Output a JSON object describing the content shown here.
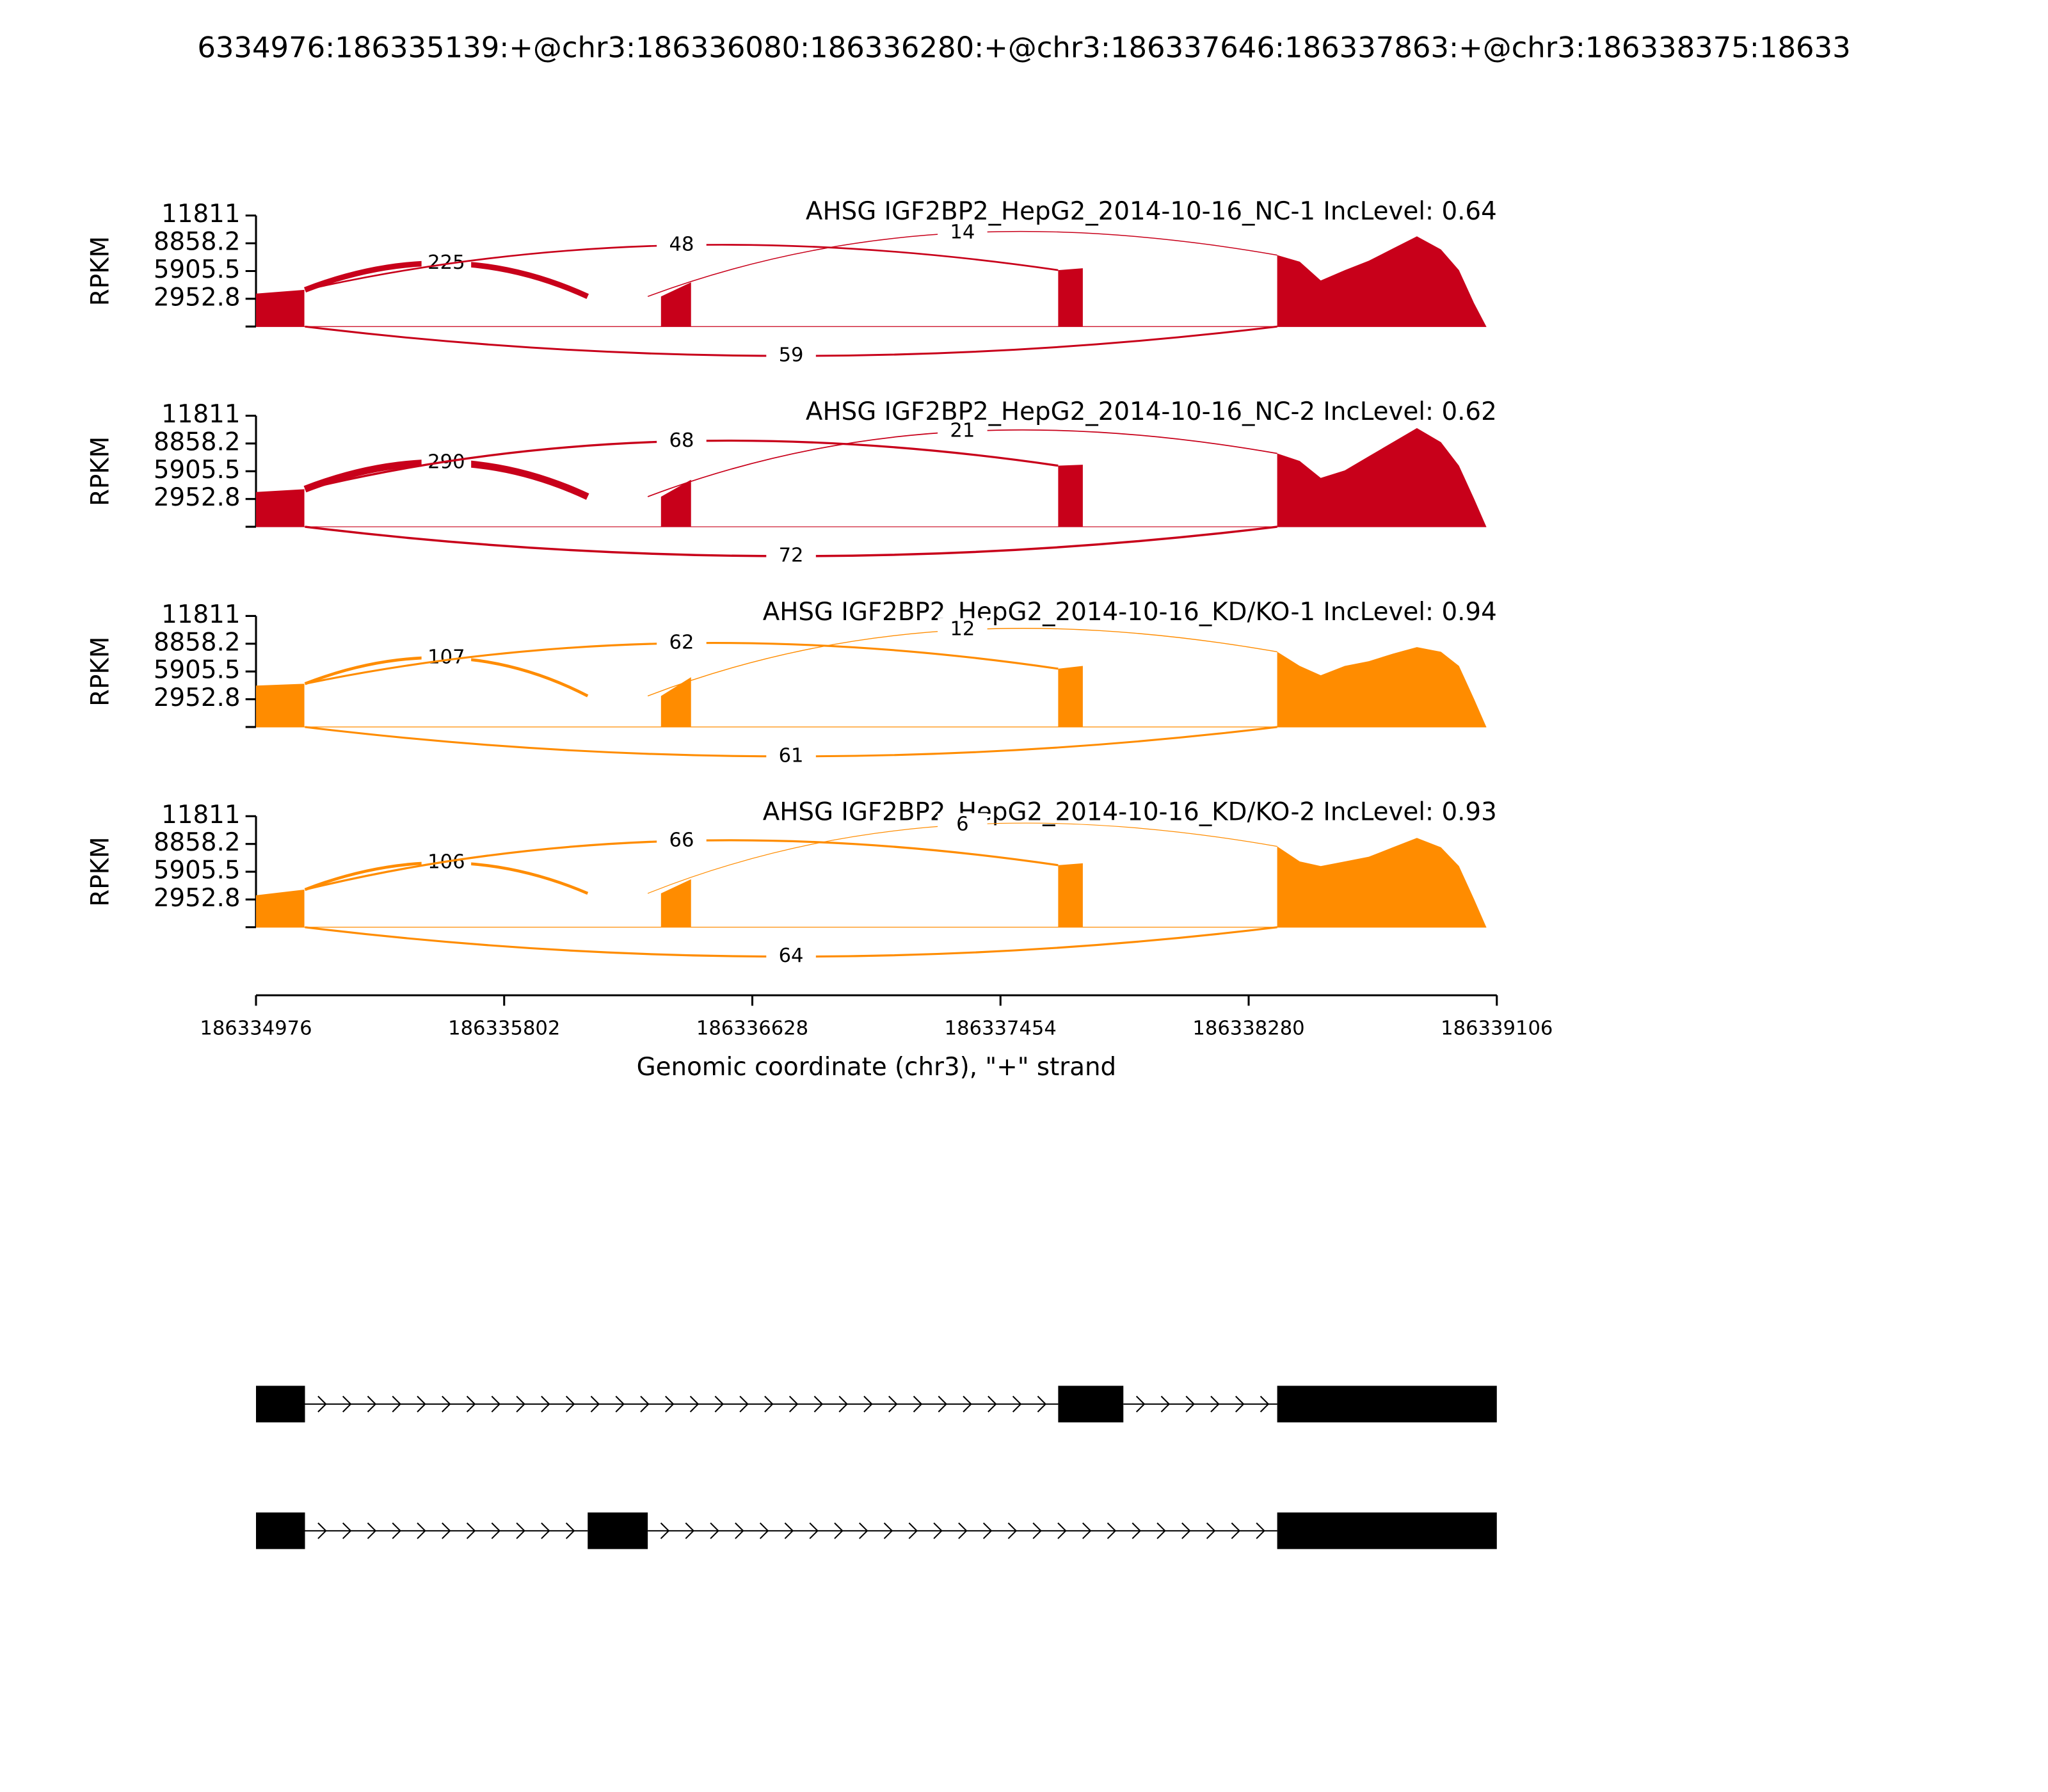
{
  "chart_data": {
    "type": "sashimi",
    "title": "6334976:186335139:+@chr3:186336080:186336280:+@chr3:186337646:186337863:+@chr3:186338375:18633",
    "xlabel": "Genomic coordinate (chr3), \"+\" strand",
    "ylabel": "RPKM",
    "xlim": [
      186334976,
      186339106
    ],
    "xticks": [
      186334976,
      186335802,
      186336628,
      186337454,
      186338280,
      186339106
    ],
    "coverage_x": [
      186334976,
      186335137,
      186335800,
      186336324,
      186336424,
      186337000,
      186337646,
      186337728,
      186338000,
      186338375,
      186338450,
      186338520,
      186338600,
      186338680,
      186338760,
      186338840,
      186338920,
      186338980,
      186339030,
      186339071
    ],
    "junctions": [
      {
        "start": 186335139,
        "end": 186336080,
        "side": "above"
      },
      {
        "start": 186335139,
        "end": 186337646,
        "side": "above"
      },
      {
        "start": 186336280,
        "end": 186338375,
        "side": "above"
      },
      {
        "start": 186335139,
        "end": 186338375,
        "side": "below"
      }
    ],
    "series": [
      {
        "name": "AHSG IGF2BP2_HepG2_2014-10-16_NC-1 IncLevel: 0.64",
        "color": "#c8001a",
        "ylim": [
          0,
          11811
        ],
        "yticks": [
          11811,
          8858.2,
          5905.5,
          2952.8
        ],
        "coverage": [
          3500,
          3900,
          null,
          3200,
          4700,
          null,
          6000,
          6200,
          null,
          7600,
          6900,
          4900,
          6000,
          7000,
          8300,
          9600,
          8200,
          6000,
          2500,
          0
        ],
        "junction_counts": [
          225,
          48,
          14,
          59
        ]
      },
      {
        "name": "AHSG IGF2BP2_HepG2_2014-10-16_NC-2 IncLevel: 0.62",
        "color": "#c8001a",
        "ylim": [
          0,
          11811
        ],
        "yticks": [
          11811,
          8858.2,
          5905.5,
          2952.8
        ],
        "coverage": [
          3700,
          4000,
          null,
          3200,
          5000,
          null,
          6500,
          6600,
          null,
          7800,
          7000,
          5200,
          6000,
          7500,
          9000,
          10500,
          9000,
          6500,
          3000,
          0
        ],
        "junction_counts": [
          290,
          68,
          21,
          72
        ]
      },
      {
        "name": "AHSG IGF2BP2_HepG2_2014-10-16_KD/KO-1 IncLevel: 0.94",
        "color": "#ff8c00",
        "ylim": [
          0,
          11811
        ],
        "yticks": [
          11811,
          8858.2,
          5905.5,
          2952.8
        ],
        "coverage": [
          4400,
          4600,
          null,
          3300,
          5300,
          null,
          6200,
          6500,
          null,
          8000,
          6500,
          5500,
          6500,
          7000,
          7800,
          8500,
          8000,
          6500,
          3000,
          0
        ],
        "junction_counts": [
          107,
          62,
          12,
          61
        ]
      },
      {
        "name": "AHSG IGF2BP2_HepG2_2014-10-16_KD/KO-2 IncLevel: 0.93",
        "color": "#ff8c00",
        "ylim": [
          0,
          11811
        ],
        "yticks": [
          11811,
          8858.2,
          5905.5,
          2952.8
        ],
        "coverage": [
          3400,
          4000,
          null,
          3600,
          5100,
          null,
          6600,
          6800,
          null,
          8600,
          7000,
          6500,
          7000,
          7500,
          8500,
          9500,
          8500,
          6500,
          3000,
          0
        ],
        "junction_counts": [
          106,
          66,
          6,
          64
        ]
      }
    ],
    "transcripts": [
      {
        "exons": [
          [
            186334976,
            186335139
          ],
          [
            186337646,
            186337863
          ],
          [
            186338375,
            186339106
          ]
        ]
      },
      {
        "exons": [
          [
            186334976,
            186335139
          ],
          [
            186336080,
            186336280
          ],
          [
            186338375,
            186339106
          ]
        ]
      }
    ]
  }
}
